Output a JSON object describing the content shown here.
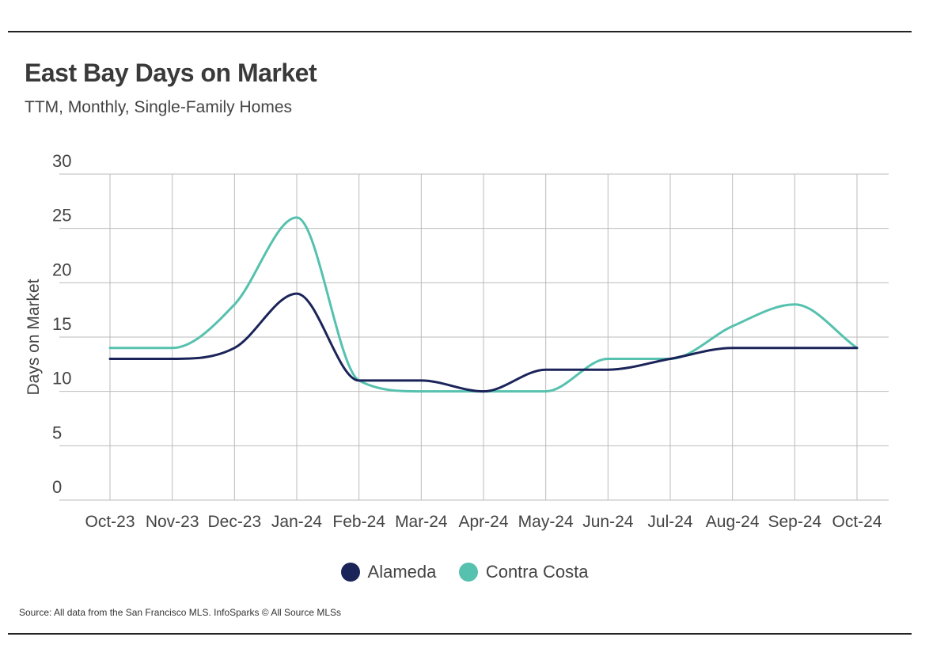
{
  "header": {
    "title": "East Bay Days on Market",
    "subtitle": "TTM, Monthly, Single-Family Homes"
  },
  "footer": {
    "source": "Source:  All data from the San Francisco MLS. InfoSparks © All Source MLSs"
  },
  "colors": {
    "alameda": "#1b2459",
    "contra_costa": "#55c1ae",
    "grid": "#bbbbbb",
    "text": "#444444"
  },
  "chart_data": {
    "type": "line",
    "title": "East Bay Days on Market",
    "subtitle": "TTM, Monthly, Single-Family Homes",
    "xlabel": "",
    "ylabel": "Days on Market",
    "x": [
      "Oct-23",
      "Nov-23",
      "Dec-23",
      "Jan-24",
      "Feb-24",
      "Mar-24",
      "Apr-24",
      "May-24",
      "Jun-24",
      "Jul-24",
      "Aug-24",
      "Sep-24",
      "Oct-24"
    ],
    "ylim": [
      0,
      30
    ],
    "yticks": [
      0,
      5,
      10,
      15,
      20,
      25,
      30
    ],
    "grid": true,
    "legend": "bottom-center",
    "series": [
      {
        "name": "Alameda",
        "values": [
          13,
          13,
          14,
          19,
          11,
          11,
          10,
          12,
          12,
          13,
          14,
          14,
          14
        ]
      },
      {
        "name": "Contra Costa",
        "values": [
          14,
          14,
          18,
          26,
          11,
          10,
          10,
          10,
          13,
          13,
          16,
          18,
          14
        ]
      }
    ]
  }
}
